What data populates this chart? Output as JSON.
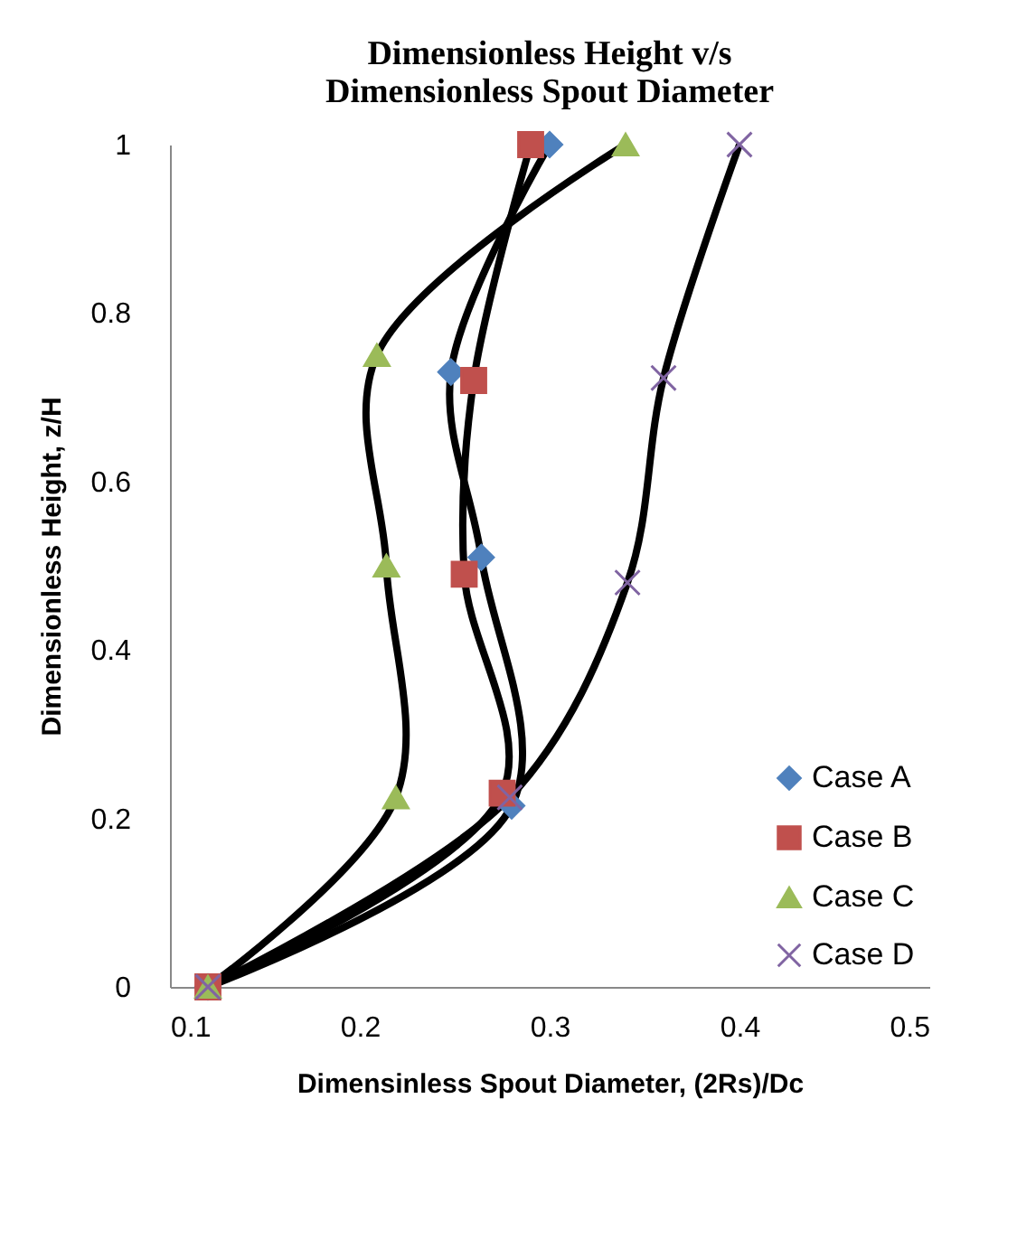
{
  "chart_data": {
    "type": "line",
    "title": [
      "Dimensionless Height v/s",
      "Dimensionless Spout Diameter"
    ],
    "xlabel": "Dimensinless Spout Diameter, (2Rs)/Dc",
    "ylabel": "Dimensionless  Height, z/H",
    "xlim": [
      0.1,
      0.5
    ],
    "xticks": [
      0.1,
      0.2,
      0.3,
      0.4,
      0.5
    ],
    "ylim": [
      0,
      1
    ],
    "yticks": [
      0,
      0.2,
      0.4,
      0.6,
      0.8,
      1
    ],
    "grid": false,
    "legend": "bottom right",
    "series": [
      {
        "name": "Case A",
        "color": "#4f81bd",
        "marker": "diamond",
        "x": [
          0.12,
          0.28,
          0.264,
          0.248,
          0.3
        ],
        "values": [
          0,
          0.215,
          0.51,
          0.73,
          1
        ]
      },
      {
        "name": "Case B",
        "color": "#c0504d",
        "marker": "square",
        "x": [
          0.12,
          0.275,
          0.255,
          0.26,
          0.29
        ],
        "values": [
          0,
          0.23,
          0.49,
          0.72,
          1
        ]
      },
      {
        "name": "Case C",
        "color": "#9bbb59",
        "marker": "triangle",
        "x": [
          0.12,
          0.219,
          0.214,
          0.209,
          0.34
        ],
        "values": [
          0,
          0.225,
          0.5,
          0.75,
          1
        ]
      },
      {
        "name": "Case D",
        "color": "#8064a2",
        "marker": "cross",
        "x": [
          0.12,
          0.279,
          0.341,
          0.36,
          0.4
        ],
        "values": [
          0,
          0.225,
          0.48,
          0.723,
          1
        ]
      }
    ]
  }
}
